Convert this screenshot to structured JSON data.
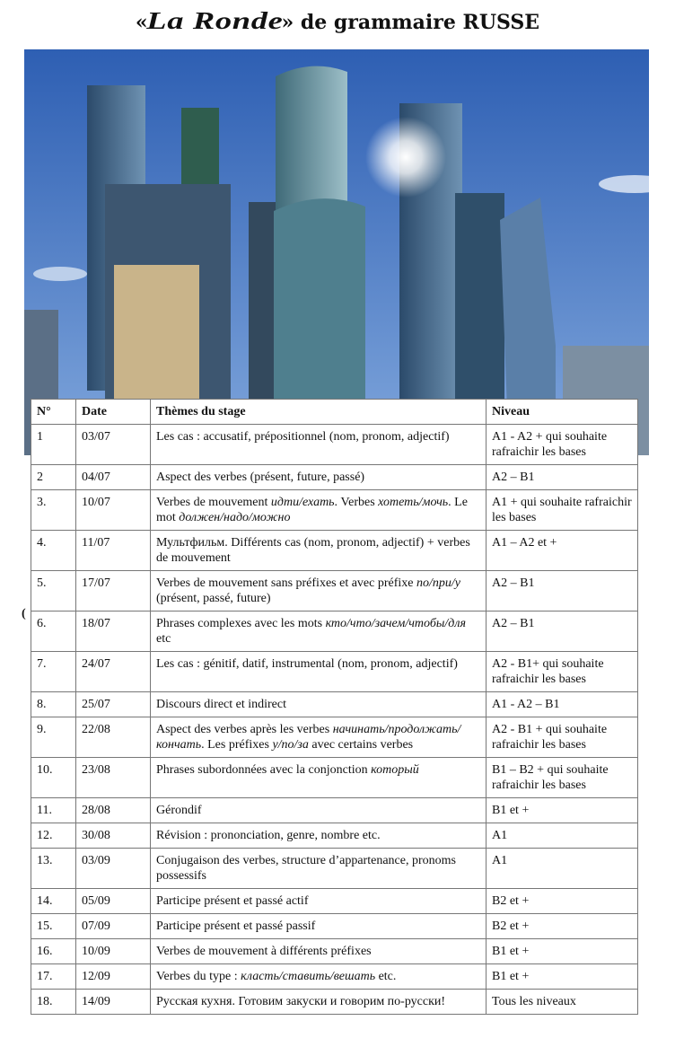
{
  "title": {
    "open_quote": "«",
    "brand": "La Ronde",
    "rest": "» de grammaire RUSSE"
  },
  "photo": {
    "description_icon": "moscow-city-skyline-photo",
    "sky_color": "#3f6fc0"
  },
  "table": {
    "headers": [
      "N°",
      "Date",
      "Thèmes du stage",
      "Niveau"
    ],
    "rows": [
      {
        "n": "1",
        "date": "03/07",
        "theme": [
          {
            "t": "Les cas : accusatif, prépositionnel (nom, pronom, adjectif)"
          }
        ],
        "niveau": "A1 - A2 + qui souhaite rafraichir les bases"
      },
      {
        "n": "2",
        "date": "04/07",
        "theme": [
          {
            "t": "Aspect des verbes (présent, future, passé)"
          }
        ],
        "niveau": "A2 – B1"
      },
      {
        "n": "3.",
        "date": "10/07",
        "theme": [
          {
            "t": "Verbes de mouvement "
          },
          {
            "t": "идти/ехать",
            "i": true
          },
          {
            "t": ". Verbes "
          },
          {
            "t": "хотеть/мочь",
            "i": true
          },
          {
            "t": ". Le mot "
          },
          {
            "t": "должен/надо/можно",
            "i": true
          }
        ],
        "niveau": "A1 + qui souhaite rafraichir les bases"
      },
      {
        "n": "4.",
        "date": "11/07",
        "theme": [
          {
            "t": "Мультфильм. Différents cas (nom, pronom, adjectif) + verbes de mouvement"
          }
        ],
        "niveau": "A1 – A2 et +"
      },
      {
        "n": "5.",
        "date": "17/07",
        "theme": [
          {
            "t": "Verbes de mouvement sans préfixes et avec préfixe "
          },
          {
            "t": "по/при/у",
            "i": true
          },
          {
            "t": " (présent, passé, future)"
          }
        ],
        "niveau": "A2 – B1"
      },
      {
        "n": "6.",
        "date": "18/07",
        "theme": [
          {
            "t": "Phrases complexes avec les mots "
          },
          {
            "t": "кто/что/зачем/чтобы/для",
            "i": true
          },
          {
            "t": " etc"
          }
        ],
        "niveau": "A2 – B1"
      },
      {
        "n": "7.",
        "date": "24/07",
        "theme": [
          {
            "t": "Les cas : génitif,  datif, instrumental  (nom, pronom, adjectif)"
          }
        ],
        "niveau": "A2 - B1+ qui souhaite rafraichir les bases"
      },
      {
        "n": "8.",
        "date": "25/07",
        "theme": [
          {
            "t": "Discours direct et indirect"
          }
        ],
        "niveau": "A1 - A2 – B1"
      },
      {
        "n": "9.",
        "date": "22/08",
        "theme": [
          {
            "t": "Aspect des verbes après les verbes "
          },
          {
            "t": "начинать/продолжать/кончать",
            "i": true
          },
          {
            "t": ". Les préfixes "
          },
          {
            "t": "у/по/за",
            "i": true
          },
          {
            "t": " avec certains verbes"
          }
        ],
        "niveau": "A2 - B1 + qui souhaite rafraichir les bases"
      },
      {
        "n": "10.",
        "date": "23/08",
        "theme": [
          {
            "t": "Phrases subordonnées avec la conjonction "
          },
          {
            "t": "который",
            "i": true
          }
        ],
        "niveau": "B1 – B2 + qui souhaite rafraichir les bases"
      },
      {
        "n": "11.",
        "date": "28/08",
        "theme": [
          {
            "t": "Gérondif"
          }
        ],
        "niveau": "B1 et +"
      },
      {
        "n": "12.",
        "date": "30/08",
        "theme": [
          {
            "t": "Révision : prononciation, genre, nombre etc."
          }
        ],
        "niveau": "A1"
      },
      {
        "n": "13.",
        "date": "03/09",
        "theme": [
          {
            "t": "Conjugaison des verbes, structure d’appartenance,  pronoms possessifs"
          }
        ],
        "niveau": "A1"
      },
      {
        "n": "14.",
        "date": "05/09",
        "theme": [
          {
            "t": "Participe présent et passé actif"
          }
        ],
        "niveau": "B2 et +"
      },
      {
        "n": "15.",
        "date": "07/09",
        "theme": [
          {
            "t": "Participe présent et passé passif"
          }
        ],
        "niveau": "B2 et +"
      },
      {
        "n": "16.",
        "date": "10/09",
        "theme": [
          {
            "t": "Verbes de mouvement à différents préfixes"
          }
        ],
        "niveau": "B1 et +"
      },
      {
        "n": "17.",
        "date": "12/09",
        "theme": [
          {
            "t": "Verbes du type : "
          },
          {
            "t": "класть/ставить/вешать",
            "i": true
          },
          {
            "t": " etc."
          }
        ],
        "niveau": "B1 et +"
      },
      {
        "n": "18.",
        "date": "14/09",
        "theme": [
          {
            "t": "Русская кухня. Готовим закуски и говорим по-русски!"
          }
        ],
        "niveau": "Tous les niveaux"
      }
    ]
  }
}
